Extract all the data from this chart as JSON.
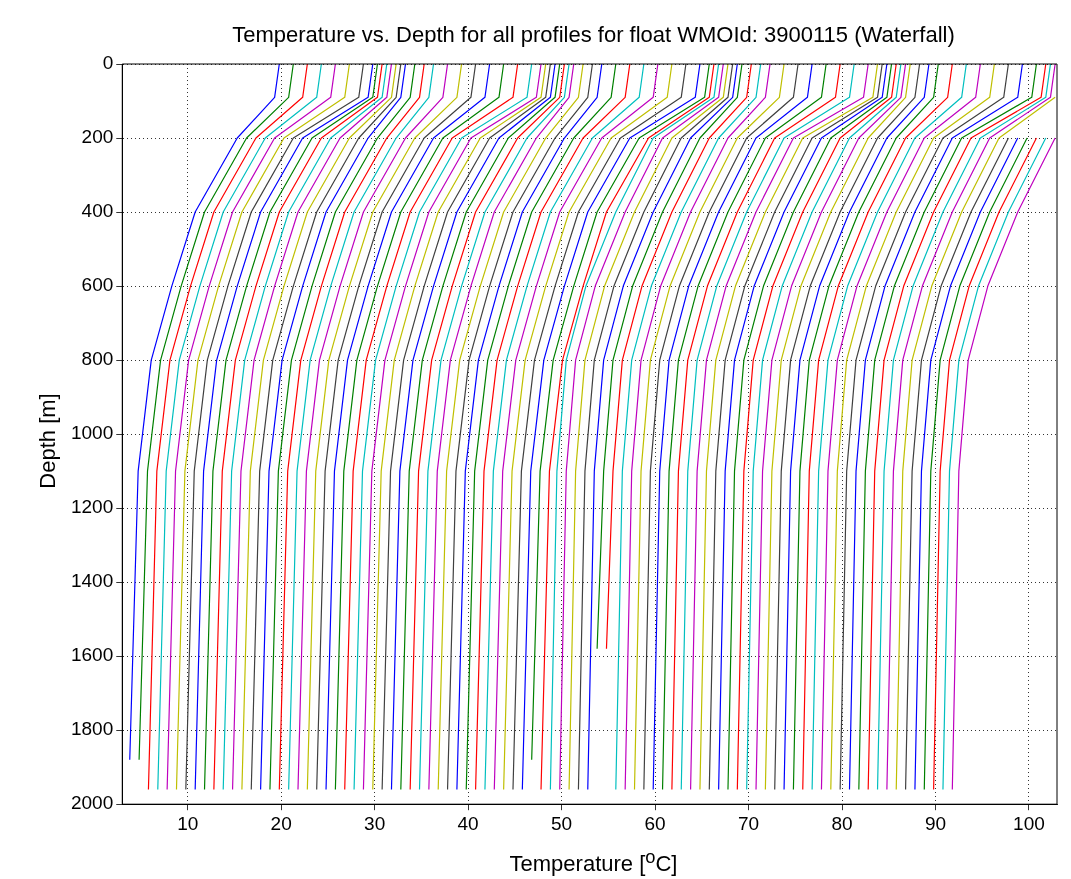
{
  "chart_data": {
    "type": "line",
    "title": "Temperature vs. Depth for all profiles for float WMOId: 3900115 (Waterfall)",
    "xlabel": "Temperature [$^{o}$C]",
    "ylabel": "Depth [m]",
    "xlim": [
      3,
      103
    ],
    "xticks": [
      10,
      20,
      30,
      40,
      50,
      60,
      70,
      80,
      90,
      100
    ],
    "ylim": [
      2000,
      0
    ],
    "yticks": [
      0,
      200,
      400,
      600,
      800,
      1000,
      1200,
      1400,
      1600,
      1800,
      2000
    ],
    "grid": true,
    "legend": false,
    "series": [
      {
        "color": "#0000ff",
        "x": [
          19.8,
          19.3,
          15.3,
          10.8,
          8.3,
          6.1,
          4.7,
          3.8
        ],
        "values": [
          0,
          90,
          200,
          400,
          600,
          800,
          1100,
          1880
        ]
      },
      {
        "color": "#008000",
        "x": [
          21.3,
          20.8,
          16.3,
          11.8,
          9.3,
          7.1,
          5.7,
          4.8
        ],
        "values": [
          0,
          90,
          200,
          400,
          600,
          800,
          1100,
          1880
        ]
      },
      {
        "color": "#ff0000",
        "x": [
          22.8,
          22.3,
          17.3,
          12.8,
          10.3,
          8.1,
          6.7,
          5.8
        ],
        "values": [
          0,
          90,
          200,
          400,
          600,
          800,
          1100,
          1960
        ]
      },
      {
        "color": "#00bfbf",
        "x": [
          24.3,
          23.8,
          18.3,
          13.8,
          11.3,
          9.1,
          7.7,
          6.8
        ],
        "values": [
          0,
          90,
          200,
          400,
          600,
          800,
          1100,
          1960
        ]
      },
      {
        "color": "#bf00bf",
        "x": [
          25.8,
          25.3,
          19.3,
          14.8,
          12.3,
          10.1,
          8.7,
          7.8
        ],
        "values": [
          0,
          90,
          200,
          400,
          600,
          800,
          1100,
          1960
        ]
      },
      {
        "color": "#bfbf00",
        "x": [
          27.3,
          26.8,
          20.3,
          15.8,
          13.3,
          11.1,
          9.7,
          8.8
        ],
        "values": [
          0,
          90,
          200,
          400,
          600,
          800,
          1100,
          1960
        ]
      },
      {
        "color": "#404040",
        "x": [
          28.8,
          28.3,
          21.3,
          16.8,
          14.3,
          12.1,
          10.7,
          9.8
        ],
        "values": [
          0,
          90,
          200,
          400,
          600,
          800,
          1100,
          1960
        ]
      },
      {
        "color": "#0000ff",
        "x": [
          29.8,
          29.3,
          22.3,
          17.8,
          15.3,
          13.1,
          11.7,
          10.8
        ],
        "values": [
          0,
          90,
          200,
          400,
          600,
          800,
          1100,
          1960
        ]
      },
      {
        "color": "#008000",
        "x": [
          30.3,
          29.8,
          23.3,
          18.8,
          16.3,
          14.1,
          12.7,
          11.8
        ],
        "values": [
          0,
          90,
          200,
          400,
          600,
          800,
          1100,
          1960
        ]
      },
      {
        "color": "#ff0000",
        "x": [
          30.8,
          30.3,
          24.3,
          19.8,
          17.3,
          15.1,
          13.7,
          12.8
        ],
        "values": [
          0,
          90,
          200,
          400,
          600,
          800,
          1100,
          1960
        ]
      },
      {
        "color": "#00bfbf",
        "x": [
          31.3,
          30.8,
          25.3,
          20.8,
          18.3,
          16.1,
          14.7,
          13.8
        ],
        "values": [
          0,
          90,
          200,
          400,
          600,
          800,
          1100,
          1960
        ]
      },
      {
        "color": "#bf00bf",
        "x": [
          31.8,
          31.3,
          26.3,
          21.8,
          19.3,
          17.1,
          15.7,
          14.8
        ],
        "values": [
          0,
          90,
          200,
          400,
          600,
          800,
          1100,
          1960
        ]
      },
      {
        "color": "#bfbf00",
        "x": [
          32.3,
          31.8,
          27.3,
          22.8,
          20.3,
          18.1,
          16.7,
          15.8
        ],
        "values": [
          0,
          90,
          200,
          400,
          600,
          800,
          1100,
          1960
        ]
      },
      {
        "color": "#404040",
        "x": [
          32.8,
          32.3,
          28.3,
          23.8,
          21.3,
          19.1,
          17.7,
          16.8
        ],
        "values": [
          0,
          90,
          200,
          400,
          600,
          800,
          1100,
          1960
        ]
      },
      {
        "color": "#0000ff",
        "x": [
          33.3,
          32.8,
          29.3,
          24.8,
          22.3,
          20.1,
          18.7,
          17.8
        ],
        "values": [
          0,
          90,
          200,
          400,
          600,
          800,
          1100,
          1960
        ]
      },
      {
        "color": "#008000",
        "x": [
          34.3,
          33.8,
          30.3,
          25.8,
          23.3,
          21.1,
          19.7,
          18.8
        ],
        "values": [
          0,
          90,
          200,
          400,
          600,
          800,
          1100,
          1960
        ]
      },
      {
        "color": "#ff0000",
        "x": [
          35.3,
          34.8,
          31.3,
          26.8,
          24.3,
          22.1,
          20.7,
          19.8
        ],
        "values": [
          0,
          90,
          200,
          400,
          600,
          800,
          1100,
          1960
        ]
      },
      {
        "color": "#00bfbf",
        "x": [
          36.3,
          35.8,
          32.3,
          27.8,
          25.3,
          23.1,
          21.7,
          20.8
        ],
        "values": [
          0,
          90,
          200,
          400,
          600,
          800,
          1100,
          1960
        ]
      },
      {
        "color": "#bf00bf",
        "x": [
          37.8,
          37.3,
          33.3,
          28.8,
          26.3,
          24.1,
          22.7,
          21.8
        ],
        "values": [
          0,
          90,
          200,
          400,
          600,
          800,
          1100,
          1960
        ]
      },
      {
        "color": "#bfbf00",
        "x": [
          39.3,
          38.8,
          34.3,
          29.8,
          27.3,
          25.1,
          23.7,
          22.8
        ],
        "values": [
          0,
          90,
          200,
          400,
          600,
          800,
          1100,
          1960
        ]
      },
      {
        "color": "#404040",
        "x": [
          40.8,
          40.3,
          35.3,
          30.8,
          28.3,
          26.1,
          24.7,
          23.8
        ],
        "values": [
          0,
          90,
          200,
          400,
          600,
          800,
          1100,
          1960
        ]
      },
      {
        "color": "#0000ff",
        "x": [
          42.3,
          41.8,
          36.3,
          31.8,
          29.3,
          27.1,
          25.7,
          24.8
        ],
        "values": [
          0,
          90,
          200,
          400,
          600,
          800,
          1100,
          1960
        ]
      },
      {
        "color": "#008000",
        "x": [
          43.8,
          43.3,
          37.3,
          32.8,
          30.3,
          28.1,
          26.7,
          25.8
        ],
        "values": [
          0,
          90,
          200,
          400,
          600,
          800,
          1100,
          1960
        ]
      },
      {
        "color": "#ff0000",
        "x": [
          45.3,
          44.8,
          38.3,
          33.8,
          31.3,
          29.1,
          27.7,
          26.8
        ],
        "values": [
          0,
          90,
          200,
          400,
          600,
          800,
          1100,
          1960
        ]
      },
      {
        "color": "#00bfbf",
        "x": [
          46.8,
          46.3,
          39.3,
          34.8,
          32.3,
          30.1,
          28.7,
          27.8
        ],
        "values": [
          0,
          90,
          200,
          400,
          600,
          800,
          1100,
          1960
        ]
      },
      {
        "color": "#bf00bf",
        "x": [
          47.8,
          47.3,
          40.3,
          35.8,
          33.3,
          31.1,
          29.7,
          28.8
        ],
        "values": [
          0,
          90,
          200,
          400,
          600,
          800,
          1100,
          1960
        ]
      },
      {
        "color": "#bfbf00",
        "x": [
          48.3,
          47.8,
          41.3,
          36.8,
          34.3,
          32.1,
          30.7,
          29.8
        ],
        "values": [
          0,
          90,
          200,
          400,
          600,
          800,
          1100,
          1960
        ]
      },
      {
        "color": "#404040",
        "x": [
          48.8,
          48.3,
          42.3,
          37.8,
          35.3,
          33.1,
          31.7,
          30.8
        ],
        "values": [
          0,
          90,
          200,
          400,
          600,
          800,
          1100,
          1960
        ]
      },
      {
        "color": "#0000ff",
        "x": [
          49.3,
          48.8,
          43.3,
          38.8,
          36.3,
          34.1,
          32.7,
          31.8
        ],
        "values": [
          0,
          90,
          200,
          400,
          600,
          800,
          1100,
          1960
        ]
      },
      {
        "color": "#008000",
        "x": [
          49.8,
          49.3,
          44.3,
          39.8,
          37.3,
          35.1,
          33.7,
          32.8
        ],
        "values": [
          0,
          90,
          200,
          400,
          600,
          800,
          1100,
          1960
        ]
      },
      {
        "color": "#ff0000",
        "x": [
          50.3,
          49.8,
          45.3,
          40.8,
          38.3,
          36.1,
          34.7,
          33.8
        ],
        "values": [
          0,
          90,
          200,
          400,
          600,
          800,
          1100,
          1960
        ]
      },
      {
        "color": "#00bfbf",
        "x": [
          50.8,
          50.3,
          46.3,
          41.8,
          39.3,
          37.1,
          35.7,
          34.8
        ],
        "values": [
          0,
          90,
          200,
          400,
          600,
          800,
          1100,
          1960
        ]
      },
      {
        "color": "#bf00bf",
        "x": [
          51.3,
          50.8,
          47.3,
          42.8,
          40.3,
          38.1,
          36.7,
          35.8
        ],
        "values": [
          0,
          90,
          200,
          400,
          600,
          800,
          1100,
          1960
        ]
      },
      {
        "color": "#bfbf00",
        "x": [
          52.3,
          51.8,
          48.3,
          43.8,
          41.3,
          39.1,
          37.7,
          36.8
        ],
        "values": [
          0,
          90,
          200,
          400,
          600,
          800,
          1100,
          1960
        ]
      },
      {
        "color": "#404040",
        "x": [
          53.3,
          52.8,
          49.3,
          44.8,
          42.3,
          40.1,
          38.7,
          37.8
        ],
        "values": [
          0,
          90,
          200,
          400,
          600,
          800,
          1100,
          1960
        ]
      },
      {
        "color": "#0000ff",
        "x": [
          54.3,
          53.8,
          50.3,
          45.8,
          43.3,
          41.1,
          39.7,
          38.8
        ],
        "values": [
          0,
          90,
          200,
          400,
          600,
          800,
          1100,
          1960
        ]
      },
      {
        "color": "#008000",
        "x": [
          55.8,
          55.3,
          51.3,
          46.8,
          44.3,
          42.1,
          40.7,
          39.8
        ],
        "values": [
          0,
          90,
          200,
          400,
          600,
          800,
          1100,
          1960
        ]
      },
      {
        "color": "#ff0000",
        "x": [
          57.3,
          56.8,
          52.3,
          47.8,
          45.3,
          43.1,
          41.7,
          40.8
        ],
        "values": [
          0,
          90,
          200,
          400,
          600,
          800,
          1100,
          1960
        ]
      },
      {
        "color": "#00bfbf",
        "x": [
          58.8,
          58.3,
          53.3,
          48.8,
          46.3,
          44.1,
          42.7,
          41.8
        ],
        "values": [
          0,
          90,
          200,
          400,
          600,
          800,
          1100,
          1960
        ]
      },
      {
        "color": "#bf00bf",
        "x": [
          60.3,
          59.8,
          54.3,
          49.8,
          47.3,
          45.1,
          43.7,
          42.8
        ],
        "values": [
          0,
          90,
          200,
          400,
          600,
          800,
          1100,
          1960
        ]
      },
      {
        "color": "#bfbf00",
        "x": [
          61.8,
          61.3,
          55.3,
          50.8,
          48.3,
          46.1,
          44.7,
          43.8
        ],
        "values": [
          0,
          90,
          200,
          400,
          600,
          800,
          1100,
          1960
        ]
      },
      {
        "color": "#404040",
        "x": [
          63.3,
          62.8,
          56.3,
          51.8,
          49.3,
          47.1,
          45.7,
          44.8
        ],
        "values": [
          0,
          90,
          200,
          400,
          600,
          800,
          1100,
          1960
        ]
      },
      {
        "color": "#0000ff",
        "x": [
          64.8,
          64.3,
          57.3,
          52.8,
          50.3,
          48.1,
          46.7,
          45.8
        ],
        "values": [
          0,
          90,
          200,
          400,
          600,
          800,
          1100,
          1960
        ]
      },
      {
        "color": "#008000",
        "x": [
          65.8,
          65.3,
          58.3,
          53.8,
          51.3,
          49.1,
          47.7,
          46.8
        ],
        "values": [
          0,
          90,
          200,
          400,
          600,
          800,
          1100,
          1880
        ]
      },
      {
        "color": "#ff0000",
        "x": [
          66.3,
          65.8,
          59.3,
          54.8,
          52.3,
          50.1,
          48.7,
          47.8
        ],
        "values": [
          0,
          90,
          200,
          400,
          600,
          800,
          1100,
          1960
        ]
      },
      {
        "color": "#00bfbf",
        "x": [
          66.8,
          66.3,
          59.8,
          55.8,
          52.6,
          50.5,
          49.5,
          48.8
        ],
        "values": [
          0,
          90,
          200,
          400,
          600,
          800,
          1100,
          1960
        ]
      },
      {
        "color": "#bf00bf",
        "x": [
          67.3,
          66.8,
          60.8,
          56.8,
          53.6,
          51.5,
          50.5,
          49.8
        ],
        "values": [
          0,
          90,
          200,
          400,
          600,
          800,
          1100,
          1960
        ]
      },
      {
        "color": "#bfbf00",
        "x": [
          67.8,
          67.3,
          61.8,
          57.8,
          54.6,
          52.5,
          51.5,
          50.8
        ],
        "values": [
          0,
          90,
          200,
          400,
          600,
          800,
          1100,
          1960
        ]
      },
      {
        "color": "#404040",
        "x": [
          68.3,
          67.8,
          62.8,
          58.8,
          55.6,
          53.5,
          52.5,
          51.8
        ],
        "values": [
          0,
          90,
          200,
          400,
          600,
          800,
          1100,
          1960
        ]
      },
      {
        "color": "#0000ff",
        "x": [
          68.8,
          68.3,
          63.8,
          59.8,
          56.6,
          54.5,
          53.5,
          52.8
        ],
        "values": [
          0,
          90,
          200,
          400,
          600,
          800,
          1100,
          1960
        ]
      },
      {
        "color": "#008000",
        "x": [
          69.3,
          68.8,
          64.8,
          60.8,
          57.6,
          55.5,
          54.5,
          53.8
        ],
        "values": [
          0,
          90,
          200,
          400,
          600,
          800,
          1100,
          1580
        ]
      },
      {
        "color": "#ff0000",
        "x": [
          70.3,
          69.8,
          65.8,
          61.8,
          58.6,
          56.5,
          55.5,
          54.8
        ],
        "values": [
          0,
          90,
          200,
          400,
          600,
          800,
          1100,
          1580
        ]
      },
      {
        "color": "#00bfbf",
        "x": [
          71.3,
          70.8,
          66.8,
          62.8,
          59.6,
          57.5,
          56.5,
          55.8
        ],
        "values": [
          0,
          90,
          200,
          400,
          600,
          800,
          1100,
          1960
        ]
      },
      {
        "color": "#bf00bf",
        "x": [
          72.3,
          71.8,
          67.8,
          63.8,
          60.6,
          58.5,
          57.5,
          56.8
        ],
        "values": [
          0,
          90,
          200,
          400,
          600,
          800,
          1100,
          1960
        ]
      },
      {
        "color": "#bfbf00",
        "x": [
          73.8,
          73.3,
          68.8,
          64.8,
          61.6,
          59.5,
          58.5,
          57.8
        ],
        "values": [
          0,
          90,
          200,
          400,
          600,
          800,
          1100,
          1960
        ]
      },
      {
        "color": "#404040",
        "x": [
          75.3,
          74.8,
          69.8,
          65.8,
          62.6,
          60.5,
          59.5,
          58.8
        ],
        "values": [
          0,
          90,
          200,
          400,
          600,
          800,
          1100,
          1960
        ]
      },
      {
        "color": "#0000ff",
        "x": [
          76.8,
          76.3,
          70.8,
          66.8,
          63.6,
          61.5,
          60.5,
          59.8
        ],
        "values": [
          0,
          90,
          200,
          400,
          600,
          800,
          1100,
          1960
        ]
      },
      {
        "color": "#008000",
        "x": [
          78.3,
          77.8,
          71.8,
          67.8,
          64.6,
          62.5,
          61.5,
          60.8
        ],
        "values": [
          0,
          90,
          200,
          400,
          600,
          800,
          1100,
          1960
        ]
      },
      {
        "color": "#ff0000",
        "x": [
          79.8,
          79.3,
          72.8,
          68.8,
          65.6,
          63.5,
          62.5,
          61.8
        ],
        "values": [
          0,
          90,
          200,
          400,
          600,
          800,
          1100,
          1960
        ]
      },
      {
        "color": "#00bfbf",
        "x": [
          81.3,
          80.8,
          73.8,
          69.8,
          66.6,
          64.5,
          63.5,
          62.8
        ],
        "values": [
          0,
          90,
          200,
          400,
          600,
          800,
          1100,
          1960
        ]
      },
      {
        "color": "#bf00bf",
        "x": [
          82.8,
          82.3,
          74.8,
          70.8,
          67.6,
          65.5,
          64.5,
          63.8
        ],
        "values": [
          0,
          90,
          200,
          400,
          600,
          800,
          1100,
          1960
        ]
      },
      {
        "color": "#bfbf00",
        "x": [
          83.8,
          83.3,
          75.8,
          71.8,
          68.6,
          66.5,
          65.5,
          64.8
        ],
        "values": [
          0,
          90,
          200,
          400,
          600,
          800,
          1100,
          1960
        ]
      },
      {
        "color": "#404040",
        "x": [
          84.3,
          83.8,
          76.8,
          72.8,
          69.6,
          67.5,
          66.5,
          65.8
        ],
        "values": [
          0,
          90,
          200,
          400,
          600,
          800,
          1100,
          1960
        ]
      },
      {
        "color": "#0000ff",
        "x": [
          84.8,
          84.3,
          77.8,
          73.8,
          70.6,
          68.5,
          67.5,
          66.8
        ],
        "values": [
          0,
          90,
          200,
          400,
          600,
          800,
          1100,
          1960
        ]
      },
      {
        "color": "#008000",
        "x": [
          85.3,
          84.8,
          78.8,
          74.8,
          71.6,
          69.5,
          68.5,
          67.8
        ],
        "values": [
          0,
          90,
          200,
          400,
          600,
          800,
          1100,
          1960
        ]
      },
      {
        "color": "#ff0000",
        "x": [
          85.8,
          85.3,
          79.8,
          75.8,
          72.6,
          70.5,
          69.5,
          68.8
        ],
        "values": [
          0,
          90,
          200,
          400,
          600,
          800,
          1100,
          1960
        ]
      },
      {
        "color": "#00bfbf",
        "x": [
          86.3,
          85.8,
          80.8,
          76.8,
          73.6,
          71.5,
          70.5,
          69.8
        ],
        "values": [
          0,
          90,
          200,
          400,
          600,
          800,
          1100,
          1960
        ]
      },
      {
        "color": "#bf00bf",
        "x": [
          86.8,
          86.3,
          81.8,
          77.8,
          74.6,
          72.5,
          71.5,
          70.8
        ],
        "values": [
          0,
          90,
          200,
          400,
          600,
          800,
          1100,
          1960
        ]
      },
      {
        "color": "#bfbf00",
        "x": [
          87.3,
          86.8,
          82.8,
          78.8,
          75.6,
          73.5,
          72.5,
          71.8
        ],
        "values": [
          0,
          90,
          200,
          400,
          600,
          800,
          1100,
          1960
        ]
      },
      {
        "color": "#404040",
        "x": [
          88.3,
          87.8,
          83.8,
          79.8,
          76.6,
          74.5,
          73.5,
          72.8
        ],
        "values": [
          0,
          90,
          200,
          400,
          600,
          800,
          1100,
          1960
        ]
      },
      {
        "color": "#0000ff",
        "x": [
          89.3,
          88.8,
          84.8,
          80.8,
          77.6,
          75.5,
          74.5,
          73.8
        ],
        "values": [
          0,
          90,
          200,
          400,
          600,
          800,
          1100,
          1960
        ]
      },
      {
        "color": "#008000",
        "x": [
          90.3,
          89.8,
          85.8,
          81.8,
          78.6,
          76.5,
          75.5,
          74.8
        ],
        "values": [
          0,
          90,
          200,
          400,
          600,
          800,
          1100,
          1960
        ]
      },
      {
        "color": "#ff0000",
        "x": [
          91.8,
          91.3,
          86.8,
          82.8,
          79.6,
          77.5,
          76.5,
          75.8
        ],
        "values": [
          0,
          90,
          200,
          400,
          600,
          800,
          1100,
          1960
        ]
      },
      {
        "color": "#00bfbf",
        "x": [
          93.3,
          92.8,
          87.8,
          83.8,
          80.6,
          78.5,
          77.5,
          76.8
        ],
        "values": [
          0,
          90,
          200,
          400,
          600,
          800,
          1100,
          1960
        ]
      },
      {
        "color": "#bf00bf",
        "x": [
          94.8,
          94.3,
          88.8,
          84.8,
          81.6,
          79.5,
          78.5,
          77.8
        ],
        "values": [
          0,
          90,
          200,
          400,
          600,
          800,
          1100,
          1960
        ]
      },
      {
        "color": "#bfbf00",
        "x": [
          96.3,
          95.8,
          89.8,
          85.8,
          82.6,
          80.5,
          79.5,
          78.8
        ],
        "values": [
          0,
          90,
          200,
          400,
          600,
          800,
          1100,
          1960
        ]
      },
      {
        "color": "#404040",
        "x": [
          97.8,
          97.3,
          90.8,
          86.8,
          83.6,
          81.5,
          80.5,
          79.8
        ],
        "values": [
          0,
          90,
          200,
          400,
          600,
          800,
          1100,
          1960
        ]
      },
      {
        "color": "#0000ff",
        "x": [
          99.3,
          98.8,
          91.8,
          87.8,
          84.6,
          82.5,
          81.5,
          80.8
        ],
        "values": [
          0,
          90,
          200,
          400,
          600,
          800,
          1100,
          1960
        ]
      },
      {
        "color": "#008000",
        "x": [
          100.8,
          100.3,
          92.8,
          88.8,
          85.6,
          83.5,
          82.5,
          81.8
        ],
        "values": [
          0,
          90,
          200,
          400,
          600,
          800,
          1100,
          1960
        ]
      },
      {
        "color": "#ff0000",
        "x": [
          101.8,
          101.3,
          93.8,
          89.8,
          86.6,
          84.5,
          83.5,
          82.8
        ],
        "values": [
          0,
          90,
          200,
          400,
          600,
          800,
          1100,
          1960
        ]
      },
      {
        "color": "#00bfbf",
        "x": [
          102.3,
          101.8,
          94.8,
          90.8,
          87.6,
          85.5,
          84.5,
          83.8
        ],
        "values": [
          0,
          90,
          200,
          400,
          600,
          800,
          1100,
          1960
        ]
      },
      {
        "color": "#bf00bf",
        "x": [
          102.8,
          102.3,
          95.8,
          91.8,
          88.6,
          86.5,
          85.5,
          84.8
        ],
        "values": [
          0,
          90,
          200,
          400,
          600,
          800,
          1100,
          1960
        ]
      },
      {
        "color": "#bfbf00",
        "x": [
          102.8,
          96.8,
          92.8,
          89.6,
          87.5,
          86.5,
          85.8
        ],
        "values": [
          90,
          200,
          400,
          600,
          800,
          1100,
          1960
        ]
      },
      {
        "color": "#404040",
        "x": [
          97.8,
          93.8,
          90.6,
          88.5,
          87.5,
          86.8
        ],
        "values": [
          200,
          400,
          600,
          800,
          1100,
          1960
        ]
      },
      {
        "color": "#0000ff",
        "x": [
          98.8,
          94.8,
          91.6,
          89.5,
          88.5,
          87.8
        ],
        "values": [
          200,
          400,
          600,
          800,
          1100,
          1960
        ]
      },
      {
        "color": "#008000",
        "x": [
          99.8,
          95.8,
          92.6,
          90.5,
          89.5,
          88.8
        ],
        "values": [
          200,
          400,
          600,
          800,
          1100,
          1960
        ]
      },
      {
        "color": "#ff0000",
        "x": [
          100.8,
          96.8,
          93.6,
          91.5,
          90.5,
          89.8
        ],
        "values": [
          200,
          400,
          600,
          800,
          1100,
          1960
        ]
      },
      {
        "color": "#00bfbf",
        "x": [
          101.8,
          97.8,
          94.6,
          92.5,
          91.5,
          90.8
        ],
        "values": [
          200,
          400,
          600,
          800,
          1100,
          1960
        ]
      },
      {
        "color": "#bf00bf",
        "x": [
          102.8,
          98.8,
          95.6,
          93.5,
          92.5,
          91.8
        ],
        "values": [
          200,
          400,
          600,
          800,
          1100,
          1960
        ]
      }
    ]
  }
}
